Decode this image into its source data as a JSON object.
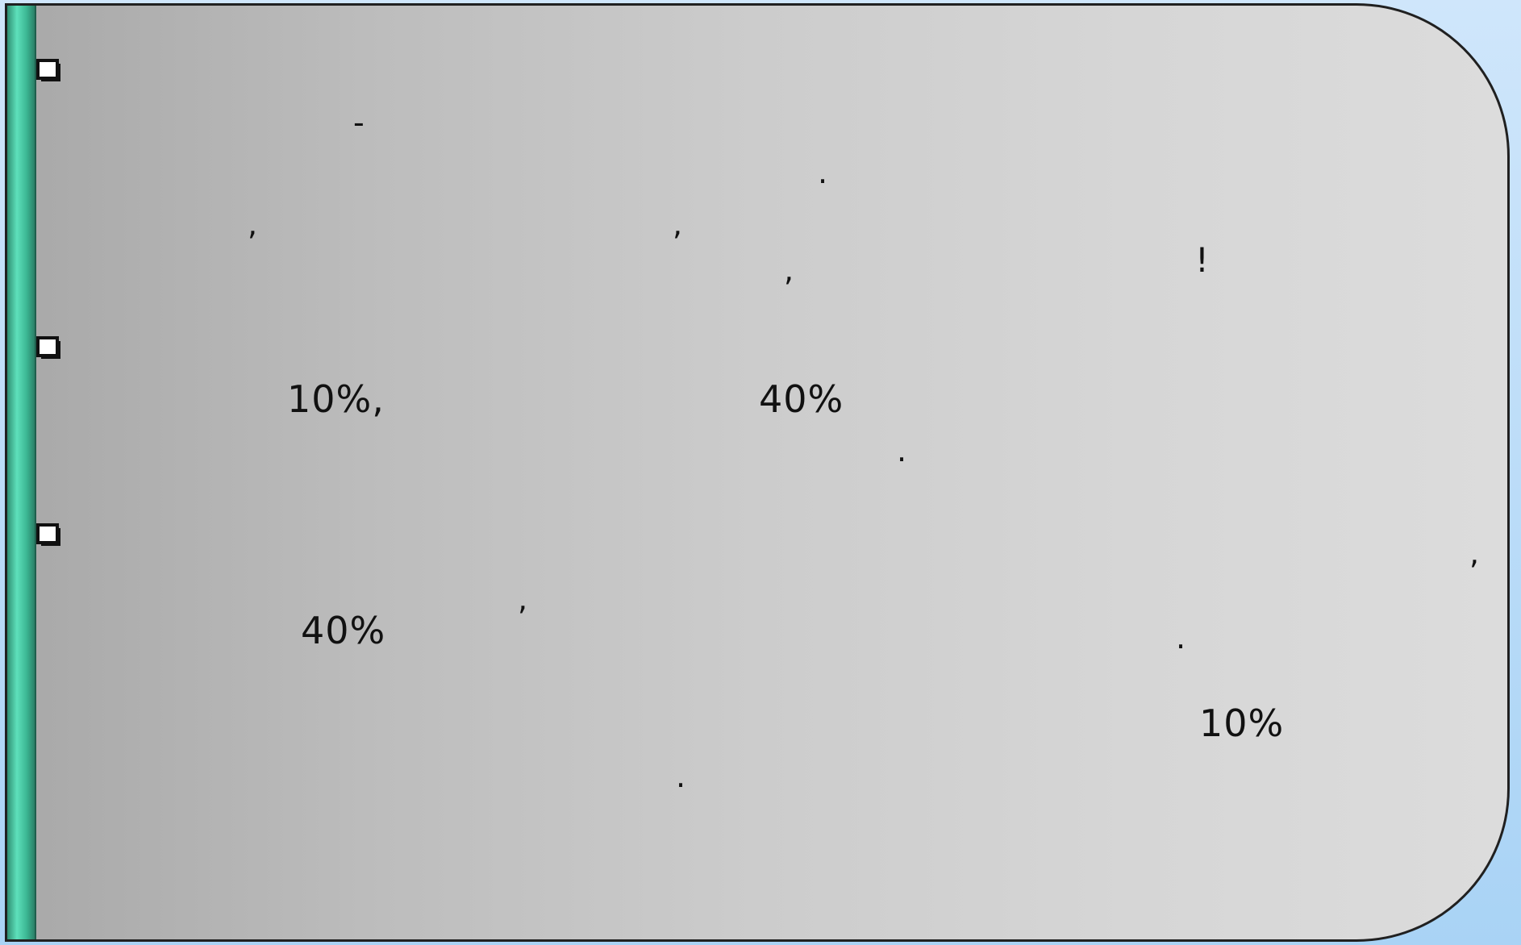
{
  "slide": {
    "bullet_icon": "square-bullet-icon",
    "accent_color": "#4fd1ad",
    "item1": {
      "hyphen": "-",
      "period": ".",
      "comma1": ",",
      "comma2": ",",
      "comma3": ",",
      "exclamation": "!"
    },
    "item2": {
      "value_a": "10%,",
      "value_b": "40%",
      "period": "."
    },
    "item3": {
      "comma1": ",",
      "comma2": ",",
      "value_a": "40%",
      "period1": ".",
      "value_b": "10%",
      "period2": "."
    }
  }
}
